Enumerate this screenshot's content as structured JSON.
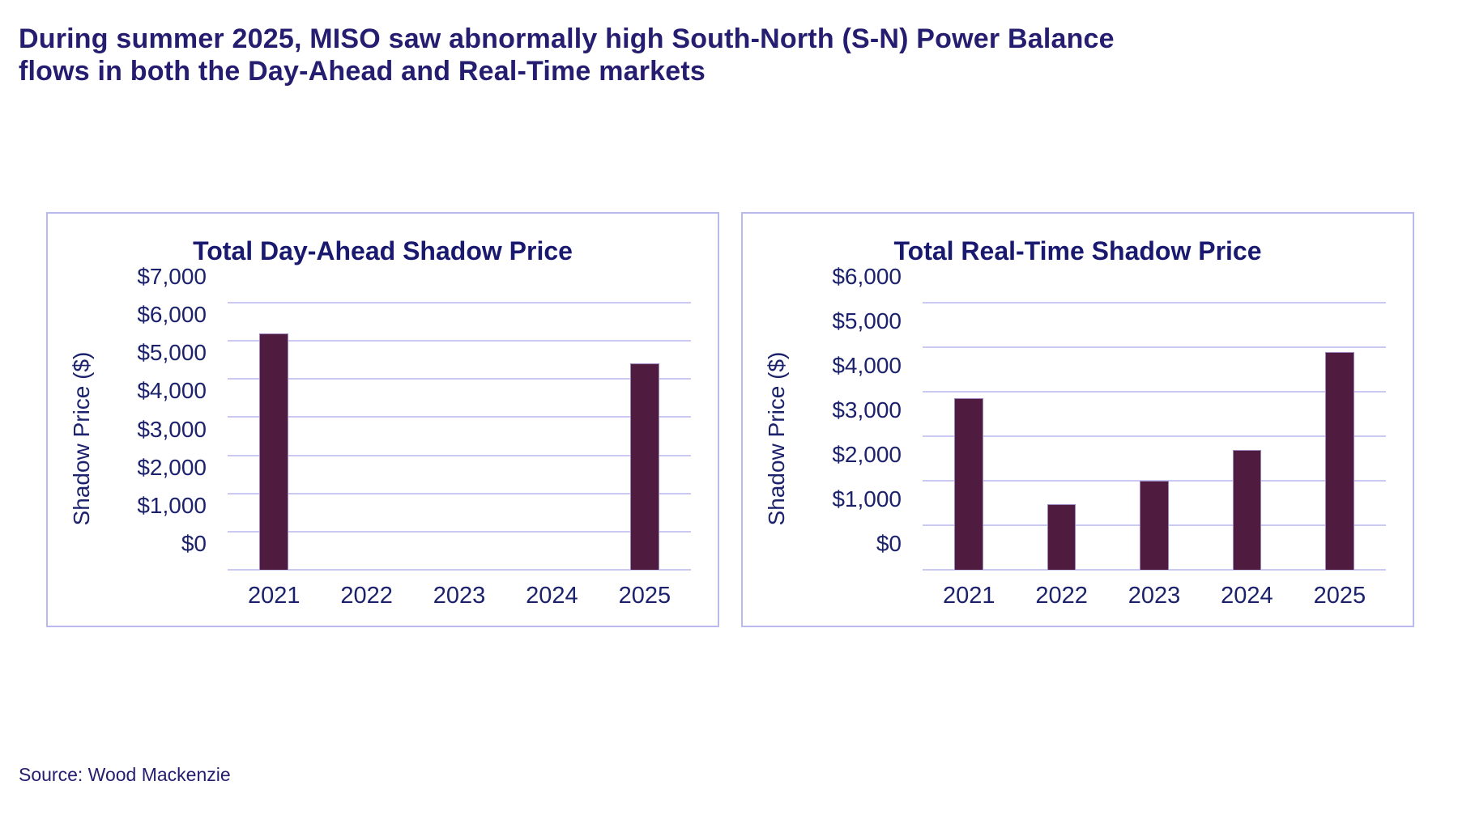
{
  "heading": "During summer 2025, MISO saw abnormally high South-North (S-N) Power Balance flows in both the Day-Ahead and Real-Time markets",
  "source_note": "Source: Wood Mackenzie",
  "colors": {
    "heading_text": "#241d70",
    "chart_title_text": "#191970",
    "axis_text": "#1b226b",
    "bar_fill": "#4f1c40",
    "bar_border": "#9d86bb",
    "gridline": "#c9c9f2",
    "card_border": "#b9b9ee",
    "background": "#ffffff"
  },
  "chart_data": [
    {
      "type": "bar",
      "title": "Total Day-Ahead Shadow Price",
      "xlabel": "",
      "ylabel": "Shadow Price ($)",
      "categories": [
        "2021",
        "2022",
        "2023",
        "2024",
        "2025"
      ],
      "values": [
        6200,
        0,
        0,
        0,
        5400
      ],
      "ylim": [
        0,
        7000
      ],
      "ytick_step": 1000,
      "ytick_labels": [
        "$0",
        "$1,000",
        "$2,000",
        "$3,000",
        "$4,000",
        "$5,000",
        "$6,000",
        "$7,000"
      ],
      "grid": true,
      "legend": false
    },
    {
      "type": "bar",
      "title": "Total Real-Time Shadow Price",
      "xlabel": "",
      "ylabel": "Shadow Price ($)",
      "categories": [
        "2021",
        "2022",
        "2023",
        "2024",
        "2025"
      ],
      "values": [
        3850,
        1470,
        2000,
        2700,
        4900
      ],
      "ylim": [
        0,
        6000
      ],
      "ytick_step": 1000,
      "ytick_labels": [
        "$0",
        "$1,000",
        "$2,000",
        "$3,000",
        "$4,000",
        "$5,000",
        "$6,000"
      ],
      "grid": true,
      "legend": false
    }
  ]
}
